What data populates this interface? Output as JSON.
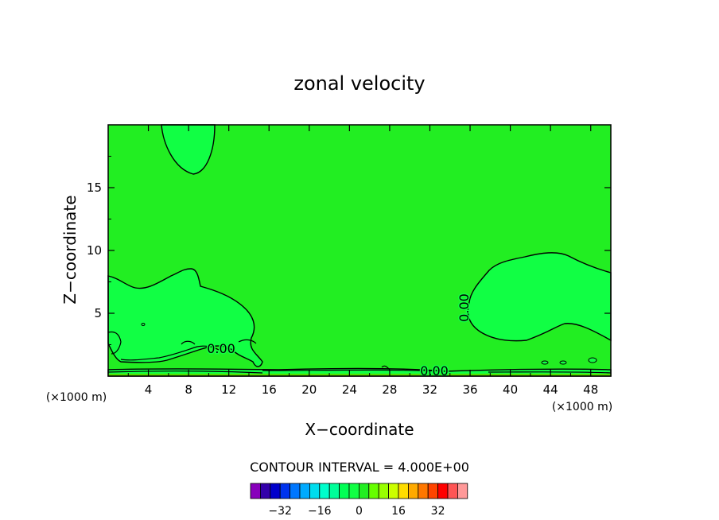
{
  "chart_data": {
    "type": "contour",
    "title": "zonal velocity",
    "xlabel": "X−coordinate",
    "ylabel": "Z−coordinate",
    "x_unit_label_left": "(×1000 m)",
    "x_unit_label_right": "(×1000 m)",
    "xlim": [
      0,
      50
    ],
    "ylim": [
      0,
      20
    ],
    "x_ticks": [
      4,
      8,
      12,
      16,
      20,
      24,
      28,
      32,
      36,
      40,
      44,
      48
    ],
    "y_ticks": [
      5,
      10,
      15
    ],
    "x_tick_labels": [
      "4",
      "8",
      "12",
      "16",
      "20",
      "24",
      "28",
      "32",
      "36",
      "40",
      "44",
      "48"
    ],
    "y_tick_labels": [
      "5",
      "10",
      "15"
    ],
    "contour_interval_text": "CONTOUR INTERVAL = 4.000E+00",
    "contour_interval": 4.0,
    "contour_labels": [
      "0.00",
      "0.00",
      "0.00"
    ],
    "background_fill_color": "#22ee22",
    "region_fill_color": "#11ff44",
    "colorbar": {
      "colors": [
        "#8800bb",
        "#3300aa",
        "#0000cc",
        "#0033ee",
        "#0077ff",
        "#00aaff",
        "#00ddee",
        "#00ffcc",
        "#00ff99",
        "#00ff55",
        "#11ff44",
        "#22ee22",
        "#66ff00",
        "#99ff00",
        "#ccff00",
        "#ffdd00",
        "#ffaa00",
        "#ff7700",
        "#ff4400",
        "#ff0000",
        "#ff5555",
        "#ff9999"
      ],
      "tick_labels": [
        "−32",
        "−16",
        "0",
        "16",
        "32"
      ],
      "tick_values": [
        -32,
        -16,
        0,
        16,
        32
      ]
    }
  }
}
